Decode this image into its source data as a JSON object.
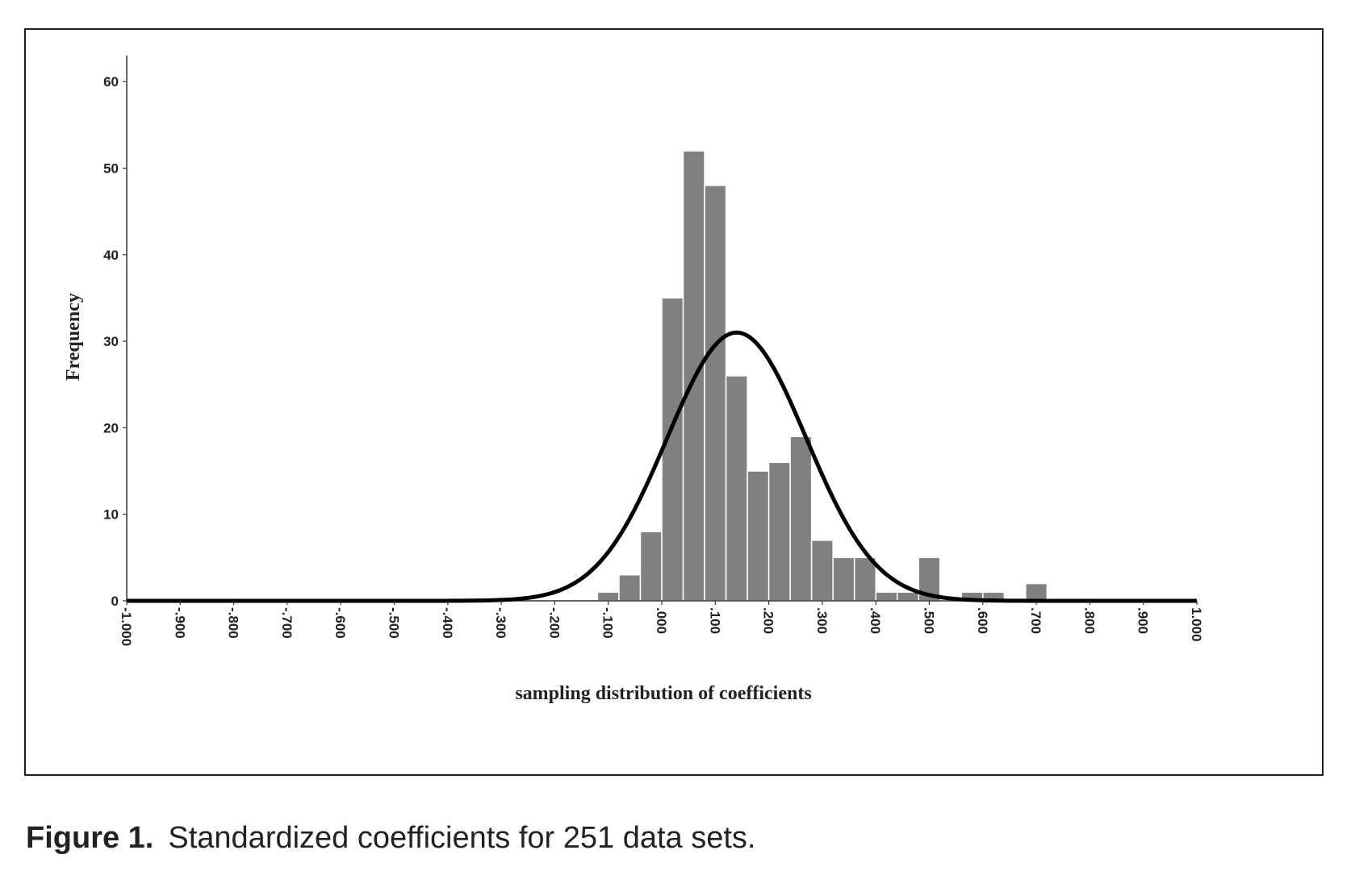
{
  "caption": {
    "label": "Figure 1.",
    "text": "Standardized coefficients for 251 data sets."
  },
  "colors": {
    "bar_fill": "#808080",
    "bar_stroke": "#ffffff",
    "curve": "#000000",
    "axis": "#333333"
  },
  "chart_data": {
    "type": "bar",
    "title": "",
    "xlabel": "sampling distribution of coefficients",
    "ylabel": "Frequency",
    "xlim": [
      -1.0,
      1.0
    ],
    "ylim": [
      0,
      63
    ],
    "grid": false,
    "x_tick_values": [
      -1.0,
      -0.9,
      -0.8,
      -0.7,
      -0.6,
      -0.5,
      -0.4,
      -0.3,
      -0.2,
      -0.1,
      0.0,
      0.1,
      0.2,
      0.3,
      0.4,
      0.5,
      0.6,
      0.7,
      0.8,
      0.9,
      1.0
    ],
    "x_tick_labels": [
      "-1.000",
      "-.900",
      "-.800",
      "-.700",
      "-.600",
      "-.500",
      "-.400",
      "-.300",
      "-.200",
      "-.100",
      ".000",
      ".100",
      ".200",
      ".300",
      ".400",
      ".500",
      ".600",
      ".700",
      ".800",
      ".900",
      "1.000"
    ],
    "y_tick_values": [
      0,
      10,
      20,
      30,
      40,
      50,
      60
    ],
    "y_tick_labels": [
      "0",
      "10",
      "20",
      "30",
      "40",
      "50",
      "60"
    ],
    "bin_width": 0.04,
    "bins": [
      {
        "start": -0.12,
        "count": 1
      },
      {
        "start": -0.08,
        "count": 3
      },
      {
        "start": -0.04,
        "count": 8
      },
      {
        "start": 0.0,
        "count": 35
      },
      {
        "start": 0.04,
        "count": 52
      },
      {
        "start": 0.08,
        "count": 48
      },
      {
        "start": 0.12,
        "count": 26
      },
      {
        "start": 0.16,
        "count": 15
      },
      {
        "start": 0.2,
        "count": 16
      },
      {
        "start": 0.24,
        "count": 19
      },
      {
        "start": 0.28,
        "count": 7
      },
      {
        "start": 0.32,
        "count": 5
      },
      {
        "start": 0.36,
        "count": 5
      },
      {
        "start": 0.4,
        "count": 1
      },
      {
        "start": 0.44,
        "count": 1
      },
      {
        "start": 0.48,
        "count": 5
      },
      {
        "start": 0.52,
        "count": 0
      },
      {
        "start": 0.56,
        "count": 1
      },
      {
        "start": 0.6,
        "count": 1
      },
      {
        "start": 0.64,
        "count": 0
      },
      {
        "start": 0.68,
        "count": 2
      }
    ],
    "normal_curve": {
      "mean": 0.14,
      "sd": 0.13,
      "peak": 31
    }
  }
}
